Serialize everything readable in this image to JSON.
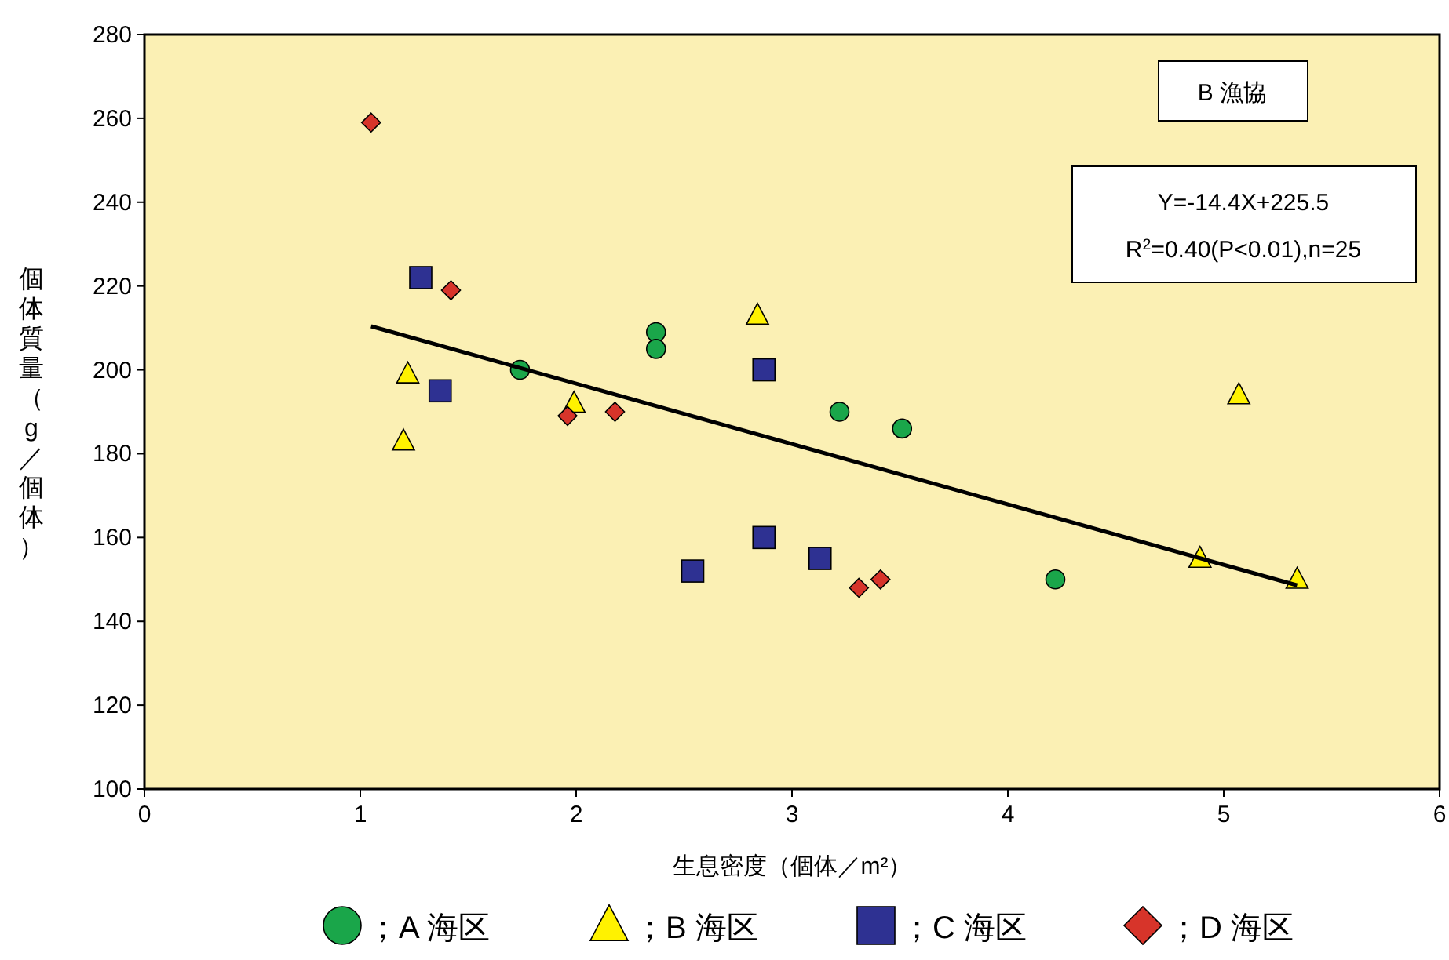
{
  "chart_data": {
    "type": "scatter",
    "xlabel": "生息密度（個体／m²）",
    "ylabel": "個体質量（g／個体）",
    "xlim": [
      0,
      6
    ],
    "xticks": [
      0,
      1,
      2,
      3,
      4,
      5,
      6
    ],
    "ylim": [
      100,
      280
    ],
    "yticks": [
      100,
      120,
      140,
      160,
      180,
      200,
      220,
      240,
      260,
      280
    ],
    "grid": false,
    "legend": "bottom",
    "annotations": [
      "B 漁協",
      "Y=-14.4X+225.5",
      "R$^{2}$=0.40(P<0.01),n=25"
    ],
    "series": [
      {
        "name": "；A 海区",
        "color": "#1aa64a",
        "marker": "circle",
        "x": [
          1.74,
          2.37,
          2.37,
          3.22,
          3.51,
          4.22
        ],
        "values": [
          200,
          209,
          205,
          190,
          186,
          150
        ]
      },
      {
        "name": "；B 海区",
        "color": "#fff200",
        "marker": "triangle",
        "x": [
          1.22,
          1.2,
          1.99,
          2.84,
          5.07,
          4.89,
          5.34
        ],
        "values": [
          199,
          183,
          192,
          213,
          194,
          155,
          150
        ]
      },
      {
        "name": "；C 海区",
        "color": "#2e3192",
        "marker": "square",
        "x": [
          1.28,
          1.37,
          2.87,
          2.87,
          2.54,
          3.13
        ],
        "values": [
          222,
          195,
          200,
          160,
          152,
          155
        ]
      },
      {
        "name": "；D 海区",
        "color": "#d7342a",
        "marker": "diamond",
        "x": [
          1.05,
          1.42,
          1.96,
          2.18,
          3.31,
          3.41
        ],
        "values": [
          259,
          219,
          189,
          190,
          148,
          150
        ]
      },
      {
        "type": "line",
        "color": "#000000",
        "marker": "none",
        "x": [
          1.05,
          5.34
        ],
        "values": [
          210.4,
          148.6
        ]
      }
    ]
  }
}
